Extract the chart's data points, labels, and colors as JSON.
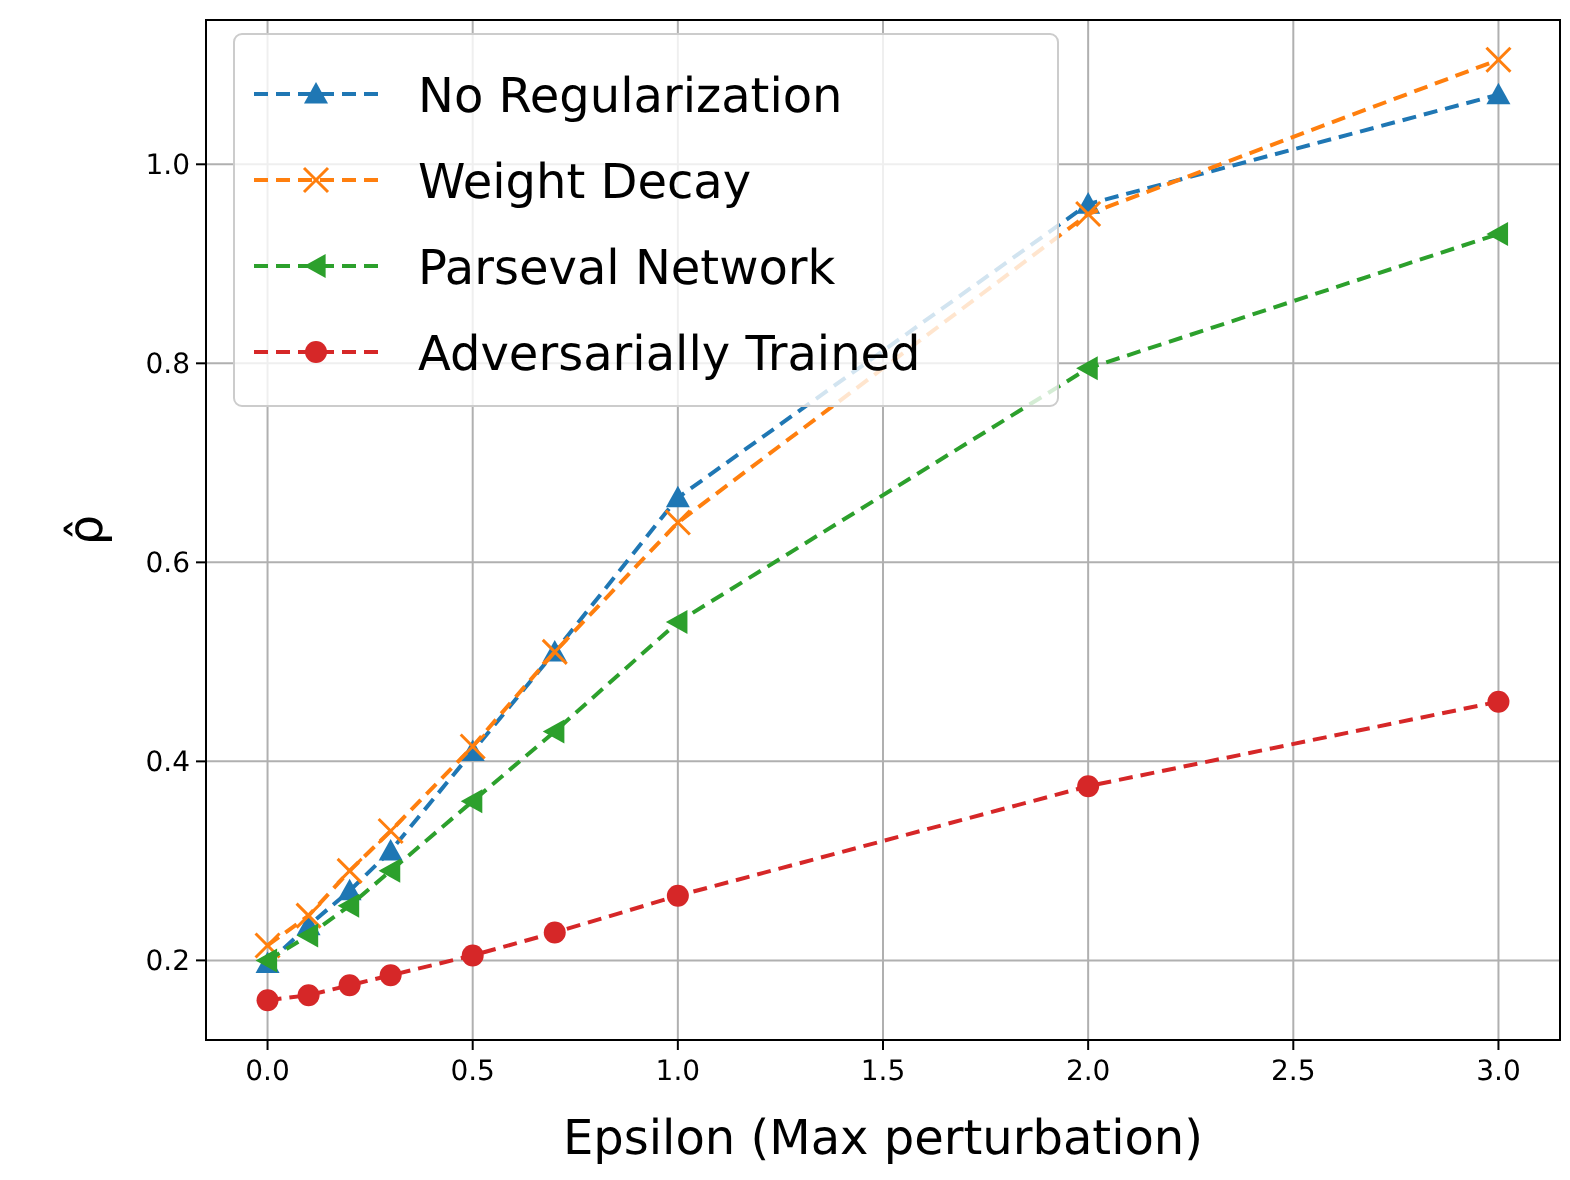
{
  "chart_data": {
    "type": "line",
    "xlabel": "Epsilon (Max perturbation)",
    "ylabel": "ρ̂",
    "x": [
      0,
      0.1,
      0.2,
      0.3,
      0.5,
      0.7,
      1.0,
      2.0,
      3.0
    ],
    "series": [
      {
        "name": "No Regularization",
        "color": "#1f77b4",
        "marker": "triangle",
        "values": [
          0.197,
          0.235,
          0.27,
          0.31,
          0.41,
          0.51,
          0.665,
          0.96,
          1.07
        ]
      },
      {
        "name": "Weight Decay",
        "color": "#ff7f0e",
        "marker": "cross",
        "values": [
          0.215,
          0.245,
          0.29,
          0.33,
          0.415,
          0.51,
          0.64,
          0.95,
          1.105
        ]
      },
      {
        "name": "Parseval Network",
        "color": "#2ca02c",
        "marker": "triangle-left",
        "values": [
          0.2,
          0.225,
          0.255,
          0.29,
          0.36,
          0.43,
          0.54,
          0.795,
          0.93
        ]
      },
      {
        "name": "Adversarially Trained",
        "color": "#d62728",
        "marker": "circle",
        "values": [
          0.16,
          0.165,
          0.175,
          0.185,
          0.205,
          0.228,
          0.265,
          0.375,
          0.46
        ]
      }
    ],
    "xlim": [
      -0.15,
      3.15
    ],
    "ylim": [
      0.12,
      1.145
    ],
    "xticks": [
      {
        "value": 0,
        "label": "0.0"
      },
      {
        "value": 0.5,
        "label": "0.5"
      },
      {
        "value": 1,
        "label": "1.0"
      },
      {
        "value": 1.5,
        "label": "1.5"
      },
      {
        "value": 2,
        "label": "2.0"
      },
      {
        "value": 2.5,
        "label": "2.5"
      },
      {
        "value": 3,
        "label": "3.0"
      }
    ],
    "yticks": [
      {
        "value": 0.2,
        "label": "0.2"
      },
      {
        "value": 0.4,
        "label": "0.4"
      },
      {
        "value": 0.6,
        "label": "0.6"
      },
      {
        "value": 0.8,
        "label": "0.8"
      },
      {
        "value": 1.0,
        "label": "1.0"
      }
    ],
    "grid": true,
    "legend": "top left",
    "line_style": "dashed"
  }
}
